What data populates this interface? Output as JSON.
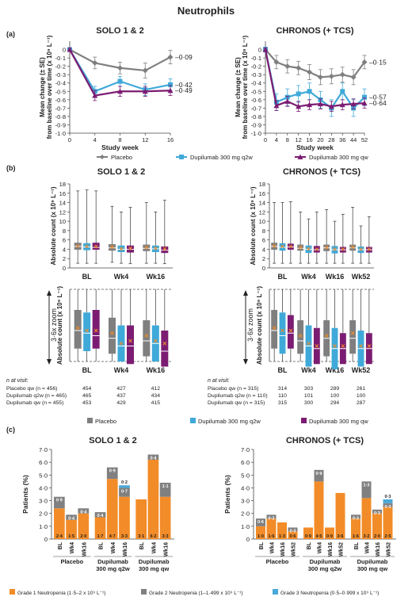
{
  "figure_title": "Neutrophils",
  "panels": {
    "a": "(a)",
    "b": "(b)",
    "c": "(c)"
  },
  "colors": {
    "placebo": "#7f7f7f",
    "q2w": "#3fa9d9",
    "qw": "#7b1c72",
    "grade1": "#f28c28",
    "grade2": "#808080",
    "grade3": "#49a8d8",
    "median": "#ffffff",
    "mean": "#f28c28"
  },
  "legend_a": [
    "Placebo",
    "Dupilumab 300 mg q2w",
    "Dupilumab 300 mg qw"
  ],
  "legend_b": [
    "Placebo",
    "Dupilumab 300 mg q2w",
    "Dupilumab 300 mg qw"
  ],
  "legend_c": [
    "Grade 1 Neutropenia (1·5–2 x 10⁹ L⁻¹)",
    "Grade 2 Neutropenia (1–1·499 x 10⁹ L⁻¹)",
    "Grade 3 Neutropenia (0·5–0·999 x 10⁹ L⁻¹)"
  ],
  "zoom_label": "3·6x zoom",
  "n_at_visit": {
    "header": "n at visit:",
    "solo": [
      {
        "label": "Placebo qw (n = 456)",
        "values": [
          "454",
          "427",
          "412"
        ]
      },
      {
        "label": "Dupilumab q2w (n = 465)",
        "values": [
          "465",
          "437",
          "434"
        ]
      },
      {
        "label": "Dupilumab qw (n = 455)",
        "values": [
          "453",
          "429",
          "415"
        ]
      }
    ],
    "chronos": [
      {
        "label": "Placebo qw (n = 315)",
        "values": [
          "314",
          "303",
          "289",
          "261"
        ]
      },
      {
        "label": "Dupilumab q2w (n = 110)",
        "values": [
          "110",
          "101",
          "100",
          "100"
        ]
      },
      {
        "label": "Dupilumab qw (n = 315)",
        "values": [
          "315",
          "300",
          "294",
          "287"
        ]
      }
    ]
  },
  "chart_data": [
    {
      "id": "a-solo",
      "type": "line",
      "title": "SOLO 1 & 2",
      "xlabel": "Study week",
      "ylabel": "Mean change (± SE) from baseline over time (x 10⁹ L⁻¹)",
      "xlim": [
        0,
        16
      ],
      "xticks": [
        "0",
        "4",
        "8",
        "12",
        "16"
      ],
      "ylim": [
        -1.0,
        0.1
      ],
      "yticks": [
        "0",
        "-0·1",
        "-0·2",
        "-0·3",
        "-0·4",
        "-0·5",
        "-0·6",
        "-0·7",
        "-0·8",
        "-0·9",
        "-1·0"
      ],
      "x": [
        0,
        4,
        8,
        12,
        16
      ],
      "series": [
        {
          "name": "Placebo",
          "values": [
            0,
            -0.16,
            -0.22,
            -0.25,
            -0.09
          ],
          "err": [
            0.02,
            0.07,
            0.07,
            0.09,
            0.08
          ],
          "end_label": "-0·09"
        },
        {
          "name": "Dupilumab 300 mg q2w",
          "values": [
            0,
            -0.5,
            -0.38,
            -0.48,
            -0.42
          ],
          "err": [
            0.02,
            0.06,
            0.06,
            0.07,
            0.07
          ],
          "end_label": "-0·42"
        },
        {
          "name": "Dupilumab 300 mg qw",
          "values": [
            0,
            -0.55,
            -0.5,
            -0.5,
            -0.49
          ],
          "err": [
            0.02,
            0.06,
            0.06,
            0.06,
            0.06
          ],
          "end_label": "-0·49"
        }
      ]
    },
    {
      "id": "a-chronos",
      "type": "line",
      "title": "CHRONOS (+ TCS)",
      "xlabel": "Study week",
      "ylabel": "Mean change (± SE) from baseline over time (x 10⁹ L⁻¹)",
      "xlim": [
        0,
        52
      ],
      "xticks": [
        "0",
        "4",
        "8",
        "12",
        "16",
        "20",
        "28",
        "36",
        "44",
        "52"
      ],
      "ylim": [
        -1.0,
        0.1
      ],
      "yticks": [
        "0",
        "-0·1",
        "-0·2",
        "-0·3",
        "-0·4",
        "-0·5",
        "-0·6",
        "-0·7",
        "-0·8",
        "-0·9",
        "-1·0"
      ],
      "x": [
        0,
        4,
        8,
        12,
        16,
        20,
        28,
        36,
        44,
        52
      ],
      "series": [
        {
          "name": "Placebo",
          "values": [
            0,
            -0.15,
            -0.2,
            -0.22,
            -0.27,
            -0.33,
            -0.32,
            -0.3,
            -0.33,
            -0.15
          ],
          "err": [
            0.03,
            0.08,
            0.08,
            0.08,
            0.09,
            0.09,
            0.09,
            0.09,
            0.09,
            0.08
          ],
          "end_label": "-0·15"
        },
        {
          "name": "Dupilumab 300 mg q2w",
          "values": [
            0,
            -0.63,
            -0.57,
            -0.53,
            -0.5,
            -0.6,
            -0.7,
            -0.5,
            -0.7,
            -0.57
          ],
          "err": [
            0.03,
            0.1,
            0.1,
            0.1,
            0.1,
            0.1,
            0.1,
            0.1,
            0.1,
            0.1
          ],
          "end_label": "-0·57"
        },
        {
          "name": "Dupilumab 300 mg qw",
          "values": [
            0,
            -0.67,
            -0.62,
            -0.68,
            -0.66,
            -0.65,
            -0.68,
            -0.66,
            -0.65,
            -0.64
          ],
          "err": [
            0.02,
            0.06,
            0.06,
            0.06,
            0.06,
            0.06,
            0.06,
            0.06,
            0.06,
            0.06
          ],
          "end_label": "-0·64"
        }
      ]
    },
    {
      "id": "b-solo-top",
      "type": "box",
      "title": "SOLO 1 & 2",
      "ylabel": "Absolute count (x 10⁹ L⁻¹)",
      "ylim": [
        0,
        18
      ],
      "yticks": [
        "0",
        "2",
        "4",
        "6",
        "8",
        "10",
        "12",
        "14",
        "16",
        "18"
      ],
      "categories": [
        "BL",
        "Wk4",
        "Wk16"
      ],
      "series": [
        {
          "name": "Placebo",
          "min": [
            1.0,
            1.2,
            1.0
          ],
          "max": [
            16.5,
            13.2,
            14.0
          ],
          "q1": [
            3.9,
            3.7,
            3.6
          ],
          "median": [
            4.6,
            4.3,
            4.2
          ],
          "q3": [
            5.4,
            5.1,
            5.0
          ],
          "mean": [
            4.7,
            4.5,
            4.4
          ]
        },
        {
          "name": "Dupilumab 300 mg q2w",
          "min": [
            1.0,
            1.0,
            1.0
          ],
          "max": [
            16.7,
            12.0,
            12.0
          ],
          "q1": [
            3.8,
            3.4,
            3.4
          ],
          "median": [
            4.5,
            4.0,
            4.1
          ],
          "q3": [
            5.3,
            4.8,
            4.8
          ],
          "mean": [
            4.6,
            4.1,
            4.2
          ]
        },
        {
          "name": "Dupilumab 300 mg qw",
          "min": [
            1.0,
            0.9,
            0.9
          ],
          "max": [
            16.5,
            13.0,
            14.5
          ],
          "q1": [
            3.9,
            3.3,
            3.2
          ],
          "median": [
            4.4,
            4.0,
            3.8
          ],
          "q3": [
            5.4,
            4.8,
            4.6
          ],
          "mean": [
            4.6,
            4.2,
            4.1
          ]
        }
      ]
    },
    {
      "id": "b-chronos-top",
      "type": "box",
      "title": "CHRONOS (+ TCS)",
      "ylabel": "Absolute count (x 10⁹ L⁻¹)",
      "ylim": [
        0,
        18
      ],
      "yticks": [
        "0",
        "2",
        "4",
        "6",
        "8",
        "10",
        "12",
        "14",
        "16",
        "18"
      ],
      "categories": [
        "BL",
        "Wk4",
        "Wk16",
        "Wk52"
      ],
      "series": [
        {
          "name": "Placebo",
          "min": [
            1.0,
            1.0,
            1.0,
            1.0
          ],
          "max": [
            14.0,
            12.0,
            12.5,
            13.0
          ],
          "q1": [
            3.9,
            3.7,
            3.6,
            3.7
          ],
          "median": [
            4.6,
            4.2,
            4.3,
            4.3
          ],
          "q3": [
            5.4,
            5.0,
            5.0,
            5.0
          ],
          "mean": [
            4.7,
            4.4,
            4.4,
            4.5
          ]
        },
        {
          "name": "Dupilumab 300 mg q2w",
          "min": [
            1.0,
            1.0,
            1.0,
            1.0
          ],
          "max": [
            14.0,
            10.5,
            10.0,
            9.0
          ],
          "q1": [
            3.7,
            3.2,
            3.1,
            3.2
          ],
          "median": [
            4.4,
            4.0,
            3.9,
            3.9
          ],
          "q3": [
            5.3,
            4.8,
            4.7,
            4.6
          ],
          "mean": [
            4.6,
            4.1,
            4.0,
            4.0
          ]
        },
        {
          "name": "Dupilumab 300 mg qw",
          "min": [
            1.0,
            1.0,
            1.0,
            1.0
          ],
          "max": [
            14.2,
            12.0,
            11.5,
            11.0
          ],
          "q1": [
            3.9,
            3.3,
            3.3,
            3.3
          ],
          "median": [
            4.5,
            3.9,
            3.9,
            3.9
          ],
          "q3": [
            5.2,
            4.7,
            4.5,
            4.5
          ],
          "mean": [
            4.6,
            4.0,
            4.0,
            4.0
          ]
        }
      ]
    },
    {
      "id": "b-solo-zoom",
      "type": "box",
      "title": "",
      "ylabel": "Absolute count (x 10⁹ L⁻¹)",
      "ylim": [
        3.4,
        6.2
      ],
      "yticks": [],
      "categories": [
        "BL",
        "Wk4",
        "Wk16"
      ],
      "series": [
        {
          "name": "Placebo",
          "q1": [
            3.9,
            3.7,
            3.6
          ],
          "median": [
            4.6,
            4.3,
            4.2
          ],
          "q3": [
            5.4,
            5.1,
            5.0
          ],
          "mean": [
            4.7,
            4.5,
            4.4
          ]
        },
        {
          "name": "Dupilumab 300 mg q2w",
          "q1": [
            3.8,
            3.4,
            3.4
          ],
          "median": [
            4.5,
            4.0,
            4.1
          ],
          "q3": [
            5.3,
            4.8,
            4.8
          ],
          "mean": [
            4.6,
            4.1,
            4.2
          ]
        },
        {
          "name": "Dupilumab 300 mg qw",
          "q1": [
            3.9,
            3.3,
            3.2
          ],
          "median": [
            4.4,
            4.0,
            3.8
          ],
          "q3": [
            5.4,
            4.8,
            4.6
          ],
          "mean": [
            4.6,
            4.2,
            4.1
          ]
        }
      ]
    },
    {
      "id": "b-chronos-zoom",
      "type": "box",
      "title": "",
      "ylabel": "Absolute count (x 10⁹ L⁻¹)",
      "ylim": [
        3.4,
        6.2
      ],
      "yticks": [],
      "categories": [
        "BL",
        "Wk4",
        "Wk16",
        "Wk52"
      ],
      "series": [
        {
          "name": "Placebo",
          "q1": [
            3.9,
            3.7,
            3.6,
            3.7
          ],
          "median": [
            4.6,
            4.2,
            4.3,
            4.3
          ],
          "q3": [
            5.4,
            5.0,
            5.0,
            5.0
          ],
          "mean": [
            4.7,
            4.4,
            4.4,
            4.5
          ]
        },
        {
          "name": "Dupilumab 300 mg q2w",
          "q1": [
            3.7,
            3.2,
            3.1,
            3.2
          ],
          "median": [
            4.4,
            4.0,
            3.9,
            3.9
          ],
          "q3": [
            5.3,
            4.8,
            4.7,
            4.6
          ],
          "mean": [
            4.6,
            4.1,
            4.0,
            4.0
          ]
        },
        {
          "name": "Dupilumab 300 mg qw",
          "q1": [
            3.9,
            3.3,
            3.3,
            3.3
          ],
          "median": [
            4.5,
            3.9,
            3.9,
            3.9
          ],
          "q3": [
            5.2,
            4.7,
            4.5,
            4.5
          ],
          "mean": [
            4.6,
            4.0,
            4.0,
            4.0
          ]
        }
      ]
    },
    {
      "id": "c-solo",
      "type": "bar",
      "stacked": true,
      "title": "SOLO 1 & 2",
      "ylabel": "Patients (%)",
      "ylim": [
        0,
        7
      ],
      "yticks": [
        "0",
        "1·0",
        "2·0",
        "3·0",
        "4·0",
        "5·0",
        "6·0",
        "7·0"
      ],
      "groups": [
        {
          "name": "Placebo",
          "bars": [
            {
              "label": "BL",
              "grade1": 2.4,
              "grade2": 0.9,
              "grade3": 0,
              "l1": "2·4",
              "l2": "0·9",
              "l3": ""
            },
            {
              "label": "Wk4",
              "grade1": 1.5,
              "grade2": 0.4,
              "grade3": 0,
              "l1": "1·5",
              "l2": "0·4",
              "l3": ""
            },
            {
              "label": "Wk16",
              "grade1": 2.0,
              "grade2": 0.4,
              "grade3": 0,
              "l1": "2·0",
              "l2": "0·4",
              "l3": ""
            }
          ]
        },
        {
          "name": "Dupilumab 300 mg q2w",
          "bars": [
            {
              "label": "BL",
              "grade1": 1.7,
              "grade2": 0.4,
              "grade3": 0,
              "l1": "1·7",
              "l2": "0·4",
              "l3": ""
            },
            {
              "label": "Wk4",
              "grade1": 4.7,
              "grade2": 0.9,
              "grade3": 0,
              "l1": "4·7",
              "l2": "0·9",
              "l3": ""
            },
            {
              "label": "Wk16",
              "grade1": 3.3,
              "grade2": 0.7,
              "grade3": 0.2,
              "l1": "3·3",
              "l2": "0·7",
              "l3": "0·2"
            }
          ]
        },
        {
          "name": "Dupilumab 300 mg qw",
          "bars": [
            {
              "label": "BL",
              "grade1": 3.1,
              "grade2": 0,
              "grade3": 0,
              "l1": "3·1",
              "l2": "",
              "l3": ""
            },
            {
              "label": "Wk4",
              "grade1": 6.2,
              "grade2": 0.4,
              "grade3": 0,
              "l1": "6·2",
              "l2": "0·4",
              "l3": ""
            },
            {
              "label": "Wk16",
              "grade1": 3.3,
              "grade2": 1.1,
              "grade3": 0,
              "l1": "3·3",
              "l2": "1·1",
              "l3": ""
            }
          ]
        }
      ]
    },
    {
      "id": "c-chronos",
      "type": "bar",
      "stacked": true,
      "title": "CHRONOS (+ TCS)",
      "ylabel": "Patients (%)",
      "ylim": [
        0,
        7
      ],
      "yticks": [
        "0",
        "1·0",
        "2·0",
        "3·0",
        "4·0",
        "5·0",
        "6·0",
        "7·0"
      ],
      "groups": [
        {
          "name": "Placebo",
          "bars": [
            {
              "label": "BL",
              "grade1": 1.0,
              "grade2": 0.6,
              "grade3": 0,
              "l1": "1·0",
              "l2": "0·6",
              "l3": ""
            },
            {
              "label": "Wk4",
              "grade1": 1.6,
              "grade2": 0.3,
              "grade3": 0,
              "l1": "1·6",
              "l2": "0·3",
              "l3": ""
            },
            {
              "label": "Wk16",
              "grade1": 1.3,
              "grade2": 0,
              "grade3": 0,
              "l1": "1·3",
              "l2": "",
              "l3": ""
            },
            {
              "label": "Wk52",
              "grade1": 0.6,
              "grade2": 0.3,
              "grade3": 0,
              "l1": "0·6",
              "l2": "0·3",
              "l3": ""
            }
          ]
        },
        {
          "name": "Dupilumab 300 mg q2w",
          "bars": [
            {
              "label": "BL",
              "grade1": 0.9,
              "grade2": 0,
              "grade3": 0,
              "l1": "0·9",
              "l2": "",
              "l3": ""
            },
            {
              "label": "Wk4",
              "grade1": 4.5,
              "grade2": 0.9,
              "grade3": 0,
              "l1": "4·5",
              "l2": "0·9",
              "l3": ""
            },
            {
              "label": "Wk16",
              "grade1": 0.9,
              "grade2": 0,
              "grade3": 0,
              "l1": "0·9",
              "l2": "",
              "l3": ""
            },
            {
              "label": "Wk52",
              "grade1": 3.6,
              "grade2": 0,
              "grade3": 0,
              "l1": "3·6",
              "l2": "",
              "l3": ""
            }
          ]
        },
        {
          "name": "Dupilumab 300 mg qw",
          "bars": [
            {
              "label": "BL",
              "grade1": 1.6,
              "grade2": 0.3,
              "grade3": 0,
              "l1": "1·6",
              "l2": "0·3",
              "l3": ""
            },
            {
              "label": "Wk4",
              "grade1": 3.2,
              "grade2": 1.3,
              "grade3": 0,
              "l1": "3·2",
              "l2": "1·3",
              "l3": ""
            },
            {
              "label": "Wk16",
              "grade1": 2.0,
              "grade2": 0.3,
              "grade3": 0,
              "l1": "2·0",
              "l2": "0·3",
              "l3": ""
            },
            {
              "label": "Wk52",
              "grade1": 2.5,
              "grade2": 0.3,
              "grade3": 0.3,
              "l1": "2·5",
              "l2": "0·3",
              "l3": "0·3"
            }
          ]
        }
      ]
    }
  ]
}
